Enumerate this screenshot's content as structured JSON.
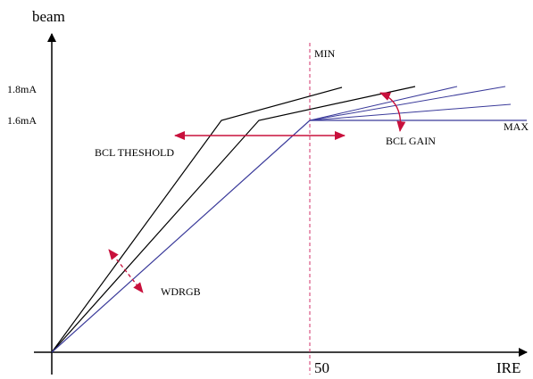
{
  "labels": {
    "y_axis": "beam",
    "x_axis": "IRE",
    "x_tick_50": "50",
    "level_high": "1.8mA",
    "level_low": "1.6mA",
    "min": "MIN",
    "max": "MAX",
    "bcl_threshold": "BCL THESHOLD",
    "bcl_gain": "BCL GAIN",
    "wdrgb": "WDRGB"
  },
  "colors": {
    "axis": "#000000",
    "black_curves": "#000000",
    "blue_curves": "#3a3a9a",
    "red_arrows": "#c8103c",
    "dashed_line": "#d0306a"
  },
  "icons": {
    "threshold_arrow": "double-headed-horizontal-arrow",
    "gain_arrow": "curved-double-arrow",
    "wdrgb_arrow": "dashed-double-arrow"
  }
}
